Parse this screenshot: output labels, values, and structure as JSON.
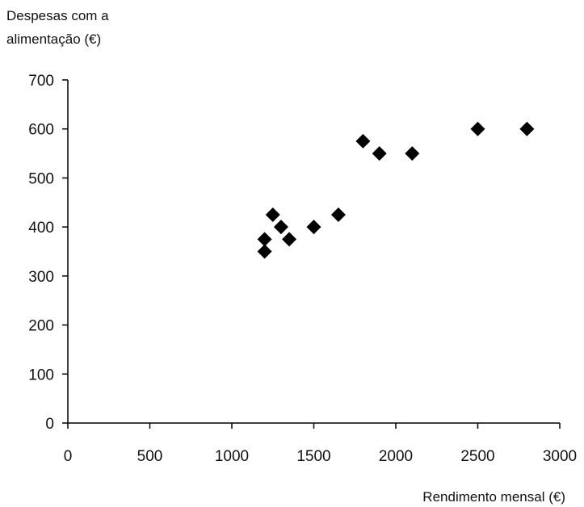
{
  "chart_data": {
    "type": "scatter",
    "ylabel_lines": [
      "Despesas com a",
      "alimentação (€)"
    ],
    "xlabel": "Rendimento mensal (€)",
    "xlim": [
      0,
      3000
    ],
    "ylim": [
      0,
      700
    ],
    "x_ticks": [
      "0",
      "500",
      "1000",
      "1500",
      "2000",
      "2500",
      "3000"
    ],
    "y_ticks": [
      "0",
      "100",
      "200",
      "300",
      "400",
      "500",
      "600",
      "700"
    ],
    "grid": false,
    "marker": "diamond",
    "marker_color": "#000000",
    "points": [
      {
        "x": 1200,
        "y": 350
      },
      {
        "x": 1200,
        "y": 375
      },
      {
        "x": 1250,
        "y": 425
      },
      {
        "x": 1300,
        "y": 400
      },
      {
        "x": 1350,
        "y": 375
      },
      {
        "x": 1500,
        "y": 400
      },
      {
        "x": 1650,
        "y": 425
      },
      {
        "x": 1800,
        "y": 575
      },
      {
        "x": 1900,
        "y": 550
      },
      {
        "x": 2100,
        "y": 550
      },
      {
        "x": 2500,
        "y": 600
      },
      {
        "x": 2800,
        "y": 600
      }
    ]
  }
}
